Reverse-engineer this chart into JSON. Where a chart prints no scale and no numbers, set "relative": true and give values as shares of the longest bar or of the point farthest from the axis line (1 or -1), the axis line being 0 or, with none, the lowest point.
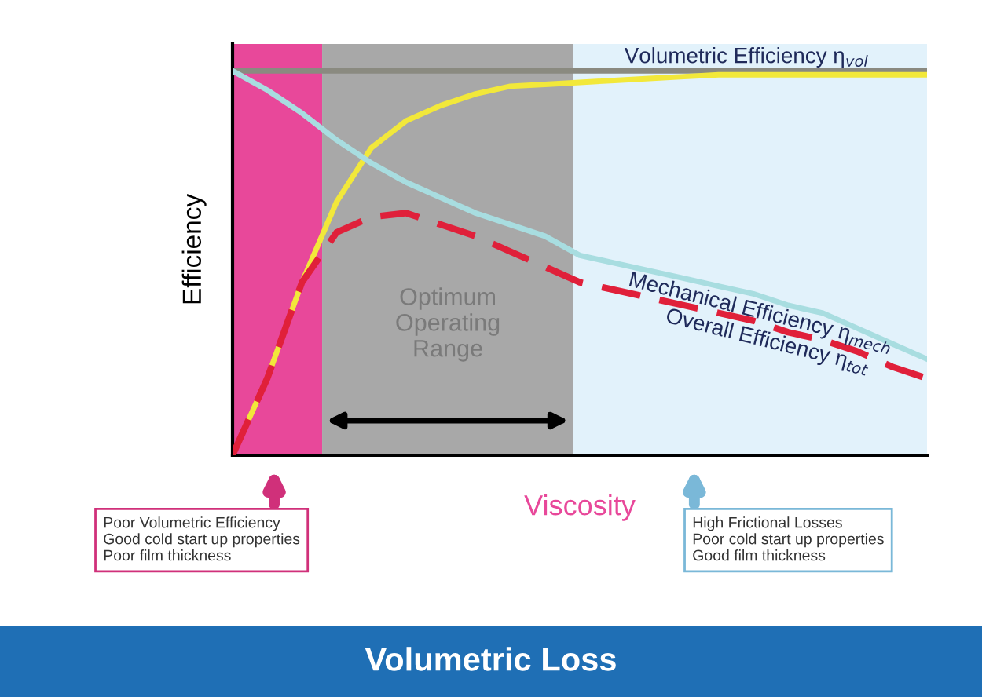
{
  "chart_data": {
    "type": "line",
    "title": "Volumetric Loss",
    "xlabel": "Viscosity",
    "ylabel": "Efficiency",
    "relative": true,
    "legend": false,
    "tick_labels": false,
    "categories": [
      null,
      null,
      null,
      null,
      null,
      null,
      null,
      null,
      null,
      null,
      null,
      null,
      null,
      null,
      null,
      null,
      null,
      null,
      null,
      null,
      null
    ],
    "series": [
      {
        "color": "#8a8a80",
        "line_style": "solid",
        "values": [
          1,
          1,
          1,
          1,
          1,
          1,
          1,
          1,
          1,
          1,
          1,
          1,
          1,
          1,
          1,
          1,
          1,
          1,
          1,
          1,
          1
        ]
      },
      {
        "name": "Volumetric Efficiency η$_{vol}$",
        "color": "#f2e83a",
        "line_style": "solid",
        "values": [
          0,
          0.2,
          0.45,
          0.66,
          0.8,
          0.87,
          0.91,
          0.94,
          0.96,
          0.965,
          0.97,
          0.975,
          0.98,
          0.985,
          0.99,
          0.99,
          0.99,
          0.99,
          0.99,
          0.99,
          0.99
        ]
      },
      {
        "name": "Mechanical Efficiency η$_{mech}$",
        "color": "#a8dde0",
        "line_style": "solid",
        "values": [
          1.0,
          0.95,
          0.89,
          0.82,
          0.76,
          0.71,
          0.67,
          0.63,
          0.6,
          0.57,
          0.52,
          0.5,
          0.48,
          0.46,
          0.44,
          0.42,
          0.39,
          0.37,
          0.33,
          0.29,
          0.25
        ]
      },
      {
        "name": "Overall Efficiency η$_{tot}$",
        "color": "#e0203a",
        "line_style": "dashed",
        "values": [
          0,
          0.2,
          0.45,
          0.58,
          0.62,
          0.63,
          0.6,
          0.57,
          0.53,
          0.49,
          0.45,
          0.43,
          0.41,
          0.39,
          0.37,
          0.35,
          0.32,
          0.3,
          0.27,
          0.23,
          0.2
        ]
      }
    ],
    "annotations": [
      "Optimum\nOperating\nRange",
      "Poor Volumetric Efficiency\nGood cold start up properties\nPoor film thickness",
      "High Frictional Losses\nPoor cold start up properties\nGood film thickness"
    ]
  }
}
